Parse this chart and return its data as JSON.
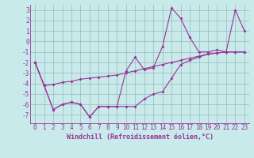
{
  "xlabel": "Windchill (Refroidissement éolien,°C)",
  "x": [
    0,
    1,
    2,
    3,
    4,
    5,
    6,
    7,
    8,
    9,
    10,
    11,
    12,
    13,
    14,
    15,
    16,
    17,
    18,
    19,
    20,
    21,
    22,
    23
  ],
  "line1": [
    -2,
    -4.2,
    -4.1,
    -3.9,
    -3.8,
    -3.6,
    -3.5,
    -3.4,
    -3.3,
    -3.2,
    -3.0,
    -2.8,
    -2.6,
    -2.4,
    -2.2,
    -2.0,
    -1.8,
    -1.6,
    -1.4,
    -1.2,
    -1.1,
    -1.0,
    -1.0,
    -1.0
  ],
  "line2": [
    -2,
    -4.2,
    -6.5,
    -6.0,
    -5.8,
    -6.0,
    -7.2,
    -6.2,
    -6.2,
    -6.2,
    -6.2,
    -6.2,
    -5.5,
    -5.0,
    -4.8,
    -3.5,
    -2.2,
    -1.8,
    -1.5,
    -1.2,
    -1.1,
    -1.0,
    -1.0,
    -1.0
  ],
  "line3": [
    -2,
    -4.2,
    -6.5,
    -6.0,
    -5.8,
    -6.0,
    -7.2,
    -6.2,
    -6.2,
    -6.2,
    -2.8,
    -1.5,
    -2.7,
    -2.5,
    -0.5,
    3.2,
    2.2,
    0.4,
    -1.0,
    -1.0,
    -0.8,
    -1.0,
    3.0,
    1.0
  ],
  "bg_color": "#c8eaea",
  "line_color": "#993399",
  "grid_color": "#9ab8b8",
  "ylim": [
    -7.8,
    3.5
  ],
  "yticks": [
    -7,
    -6,
    -5,
    -4,
    -3,
    -2,
    -1,
    0,
    1,
    2,
    3
  ],
  "xticks": [
    0,
    1,
    2,
    3,
    4,
    5,
    6,
    7,
    8,
    9,
    10,
    11,
    12,
    13,
    14,
    15,
    16,
    17,
    18,
    19,
    20,
    21,
    22,
    23
  ],
  "marker": "D",
  "markersize": 2.0,
  "linewidth": 0.8,
  "tick_fontsize": 5.5,
  "xlabel_fontsize": 6.0
}
